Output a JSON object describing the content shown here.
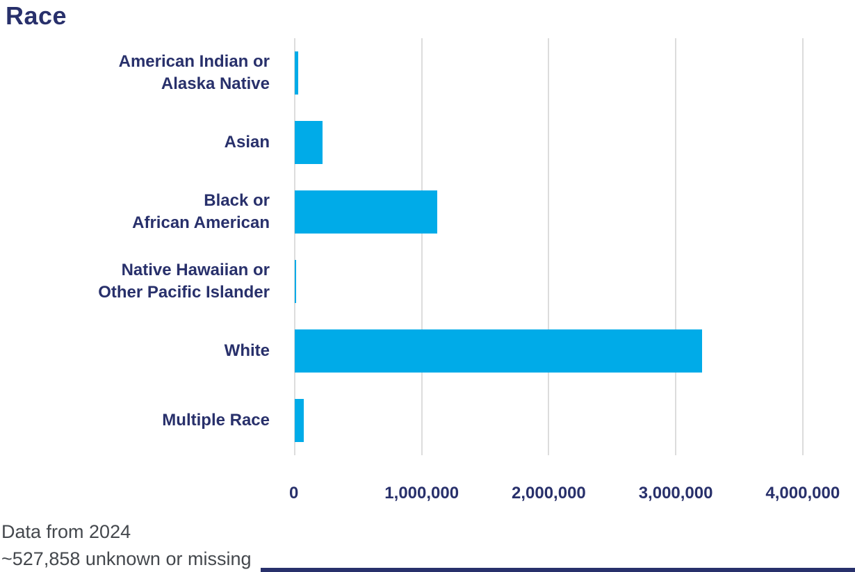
{
  "chart_data": {
    "type": "bar",
    "orientation": "horizontal",
    "title": "Race",
    "categories": [
      "American Indian or Alaska Native",
      "Asian",
      "Black or African American",
      "Native Hawaiian or Other Pacific Islander",
      "White",
      "Multiple Race"
    ],
    "category_label_lines": [
      [
        "American Indian or",
        "Alaska Native"
      ],
      [
        "Asian"
      ],
      [
        "Black or",
        "African American"
      ],
      [
        "Native Hawaiian or",
        "Other Pacific Islander"
      ],
      [
        "White"
      ],
      [
        "Multiple Race"
      ]
    ],
    "values": [
      25000,
      220000,
      1120000,
      7000,
      3210000,
      73000
    ],
    "x_ticks": [
      0,
      1000000,
      2000000,
      3000000,
      4000000
    ],
    "x_tick_labels": [
      "0",
      "1,000,000",
      "2,000,000",
      "3,000,000",
      "4,000,000"
    ],
    "xlim": [
      0,
      4410000
    ],
    "xlabel": "",
    "ylabel": "",
    "grid": "vertical-only",
    "legend": "none",
    "bar_color": "#00abe8",
    "label_color": "#28306b",
    "grid_color": "#dcdcdc"
  },
  "footnotes": {
    "line1": "Data from 2024",
    "line2": "~527,858 unknown or missing"
  },
  "colors": {
    "title_navy": "#28306b",
    "bar_blue": "#00abe8",
    "gridline_gray": "#dcdcdc",
    "footnote_gray": "#44484d",
    "background": "#ffffff"
  }
}
